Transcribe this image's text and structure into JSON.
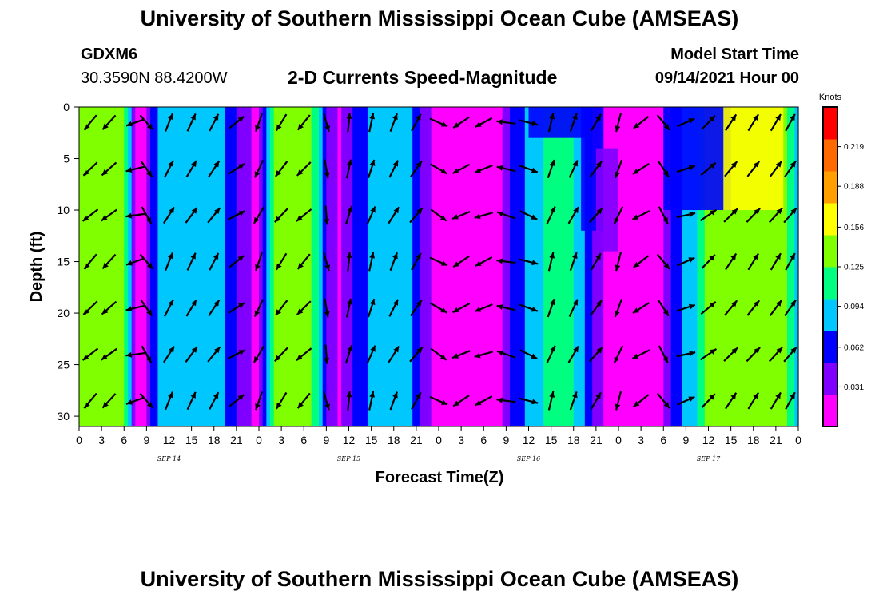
{
  "header": {
    "title": "University of Southern Mississippi Ocean Cube (AMSEAS)",
    "station_id": "GDXM6",
    "station_coords": "30.3590N  88.4200W",
    "model_label": "Model Start Time",
    "subtitle": "2-D Currents Speed-Magnitude",
    "model_time": "09/14/2021 Hour 00"
  },
  "footer": {
    "title": "University of Southern Mississippi Ocean Cube (AMSEAS)"
  },
  "colors": {
    "scale": [
      "#ff00ff",
      "#8000ff",
      "#0000ff",
      "#00c8ff",
      "#00ff80",
      "#80ff00",
      "#ffff00",
      "#ff9f00",
      "#ff6a00",
      "#ff0000"
    ],
    "arrow": "#000000"
  },
  "chart_data": {
    "type": "heatmap",
    "title": "2-D Currents Speed-Magnitude",
    "xlabel": "Forecast Time(Z)",
    "ylabel": "Depth (ft)",
    "x_tick_labels": [
      "0",
      "3",
      "6",
      "9",
      "12",
      "15",
      "18",
      "21",
      "0",
      "3",
      "6",
      "9",
      "12",
      "15",
      "18",
      "21",
      "0",
      "3",
      "6",
      "9",
      "12",
      "15",
      "18",
      "21",
      "0",
      "3",
      "6",
      "9",
      "12",
      "15",
      "18",
      "21",
      "0"
    ],
    "date_labels": [
      "SEP 14",
      "SEP 15",
      "SEP 16",
      "SEP 17"
    ],
    "xlim_hours": [
      0,
      96
    ],
    "y_ticks": [
      0,
      5,
      10,
      15,
      20,
      25,
      30
    ],
    "ylim": [
      0,
      31
    ],
    "y_inverted": true,
    "colorbar": {
      "label": "Knots",
      "ticks": [
        "0.219",
        "0.188",
        "0.156",
        "0.125",
        "0.094",
        "0.062",
        "0.031"
      ],
      "range": [
        0,
        0.25
      ]
    },
    "speed_by_hour": [
      [
        0,
        0.14
      ],
      [
        6,
        0.14
      ],
      [
        7,
        0.06
      ],
      [
        8,
        0.0
      ],
      [
        9,
        0.03
      ],
      [
        10,
        0.07
      ],
      [
        12,
        0.085
      ],
      [
        15,
        0.095
      ],
      [
        17,
        0.1
      ],
      [
        19,
        0.08
      ],
      [
        21,
        0.05
      ],
      [
        22,
        0.03
      ],
      [
        24,
        0.02
      ],
      [
        25,
        0.09
      ],
      [
        26,
        0.125
      ],
      [
        30,
        0.14
      ],
      [
        32,
        0.1
      ],
      [
        33,
        0.04
      ],
      [
        35,
        0.02
      ],
      [
        37,
        0.06
      ],
      [
        40,
        0.095
      ],
      [
        43,
        0.1
      ],
      [
        45,
        0.06
      ],
      [
        46,
        0.03
      ],
      [
        48,
        0.02
      ],
      [
        51,
        0.005
      ],
      [
        55,
        0.01
      ],
      [
        57,
        0.03
      ],
      [
        58,
        0.06
      ],
      [
        61,
        0.09
      ],
      [
        63,
        0.115
      ],
      [
        66,
        0.1
      ],
      [
        69,
        0.04
      ],
      [
        70,
        0.02
      ],
      [
        75,
        0.015
      ],
      [
        78,
        0.02
      ],
      [
        79,
        0.05
      ],
      [
        80,
        0.07
      ],
      [
        82,
        0.095
      ],
      [
        84,
        0.13
      ],
      [
        86,
        0.145
      ],
      [
        94,
        0.145
      ],
      [
        96,
        0.08
      ]
    ],
    "surface_patches": [
      {
        "x0": 60,
        "x1": 68,
        "y0": 0,
        "y1": 3,
        "speed": 0.05
      },
      {
        "x0": 67,
        "x1": 70,
        "y0": 0,
        "y1": 12,
        "speed": 0.06
      },
      {
        "x0": 69,
        "x1": 72,
        "y0": 4,
        "y1": 14,
        "speed": 0.03
      },
      {
        "x0": 78,
        "x1": 87,
        "y0": 0,
        "y1": 10,
        "speed": 0.06
      },
      {
        "x0": 86,
        "x1": 94,
        "y0": 0,
        "y1": 10,
        "speed": 0.16
      }
    ],
    "arrow_hours": [
      1.5,
      4,
      7.5,
      9,
      12,
      15,
      18,
      21,
      24,
      27,
      30,
      33,
      36,
      39,
      42,
      45,
      48,
      51,
      54,
      57,
      60,
      63,
      66,
      69,
      72,
      75,
      78,
      81,
      84,
      87,
      90,
      93,
      96
    ],
    "arrow_depths": [
      1.5,
      6,
      10.5,
      15,
      19.5,
      24,
      28.5
    ],
    "arrow_angle_by_hour_deg": [
      [
        0,
        225
      ],
      [
        6,
        230
      ],
      [
        8,
        265
      ],
      [
        10,
        25
      ],
      [
        14,
        30
      ],
      [
        20,
        35
      ],
      [
        22,
        80
      ],
      [
        24,
        205
      ],
      [
        26,
        215
      ],
      [
        30,
        225
      ],
      [
        32,
        250
      ],
      [
        35,
        10
      ],
      [
        38,
        15
      ],
      [
        45,
        35
      ],
      [
        47,
        60
      ],
      [
        50,
        240
      ],
      [
        55,
        250
      ],
      [
        58,
        300
      ],
      [
        61,
        15
      ],
      [
        66,
        25
      ],
      [
        70,
        40
      ],
      [
        72,
        200
      ],
      [
        76,
        250
      ],
      [
        79,
        95
      ],
      [
        82,
        60
      ],
      [
        86,
        40
      ],
      [
        96,
        35
      ]
    ]
  }
}
